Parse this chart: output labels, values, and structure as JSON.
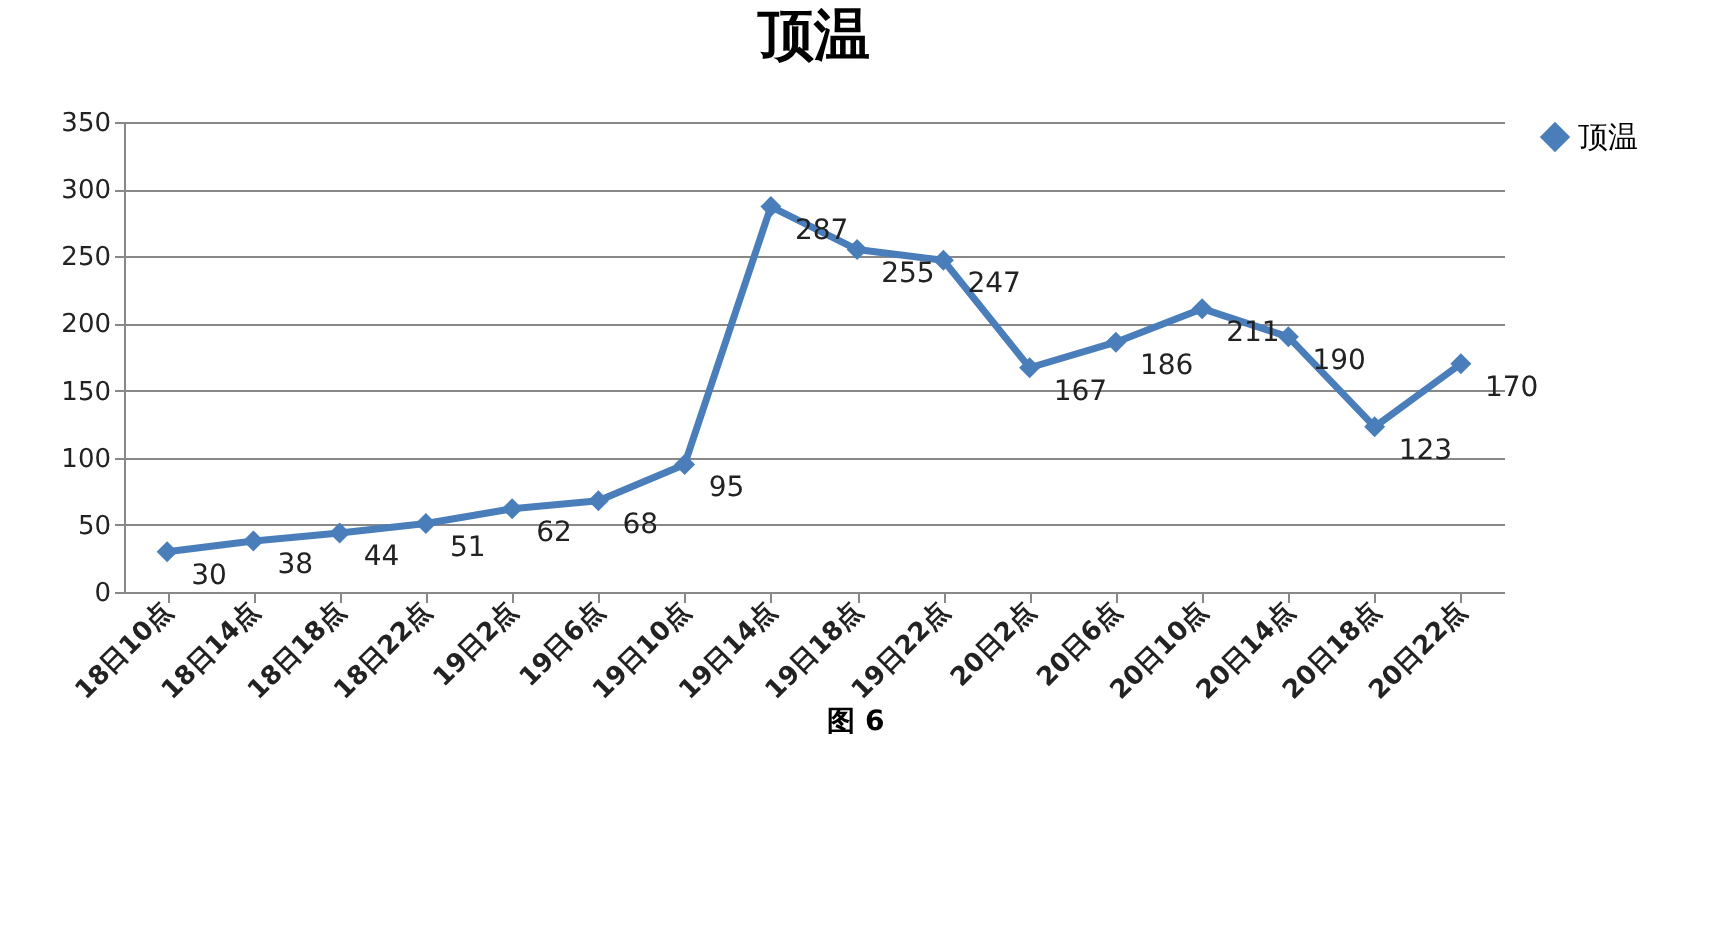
{
  "chart_data": {
    "type": "line",
    "title": "顶温",
    "categories": [
      "18日10点",
      "18日14点",
      "18日18点",
      "18日22点",
      "19日2点",
      "19日6点",
      "19日10点",
      "19日14点",
      "19日18点",
      "19日22点",
      "20日2点",
      "20日6点",
      "20日10点",
      "20日14点",
      "20日18点",
      "20日22点"
    ],
    "series": [
      {
        "name": "顶温",
        "color": "#4a7ebb",
        "values": [
          30,
          38,
          44,
          51,
          62,
          68,
          95,
          287,
          255,
          247,
          167,
          186,
          211,
          190,
          123,
          170
        ]
      }
    ],
    "ylim": [
      0,
      350
    ],
    "yticks": [
      0,
      50,
      100,
      150,
      200,
      250,
      300,
      350
    ],
    "grid": "y",
    "legend": "right",
    "marker": "diamond",
    "data_labels": true,
    "annotations": [
      "图 6"
    ]
  }
}
